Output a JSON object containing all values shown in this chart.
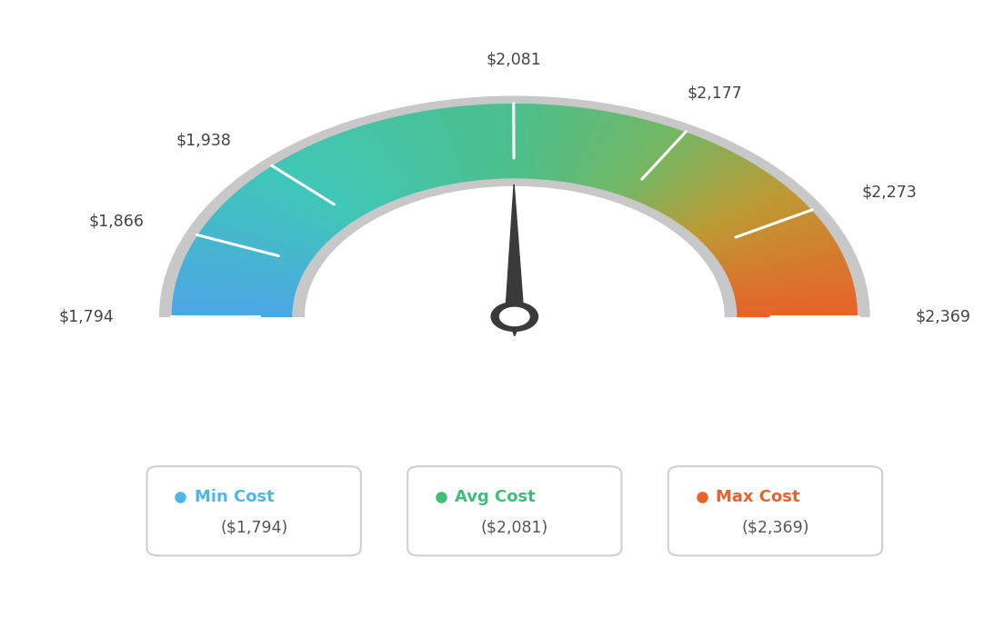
{
  "min_val": 1794,
  "avg_val": 2081,
  "max_val": 2369,
  "tick_labels": [
    "$1,794",
    "$1,866",
    "$1,938",
    "$2,081",
    "$2,177",
    "$2,273",
    "$2,369"
  ],
  "tick_values": [
    1794,
    1866,
    1938,
    2081,
    2177,
    2273,
    2369
  ],
  "legend": [
    {
      "label": "Min Cost",
      "value": "($1,794)",
      "color": "#4db8e8"
    },
    {
      "label": "Avg Cost",
      "value": "($2,081)",
      "color": "#3dbf7a"
    },
    {
      "label": "Max Cost",
      "value": "($2,369)",
      "color": "#e8622a"
    }
  ],
  "bg_color": "#ffffff",
  "color_stops": [
    [
      0.0,
      [
        0.3,
        0.65,
        0.9
      ]
    ],
    [
      0.25,
      [
        0.25,
        0.78,
        0.72
      ]
    ],
    [
      0.5,
      [
        0.3,
        0.75,
        0.55
      ]
    ],
    [
      0.65,
      [
        0.45,
        0.72,
        0.4
      ]
    ],
    [
      0.8,
      [
        0.75,
        0.6,
        0.2
      ]
    ],
    [
      1.0,
      [
        0.91,
        0.38,
        0.16
      ]
    ]
  ]
}
